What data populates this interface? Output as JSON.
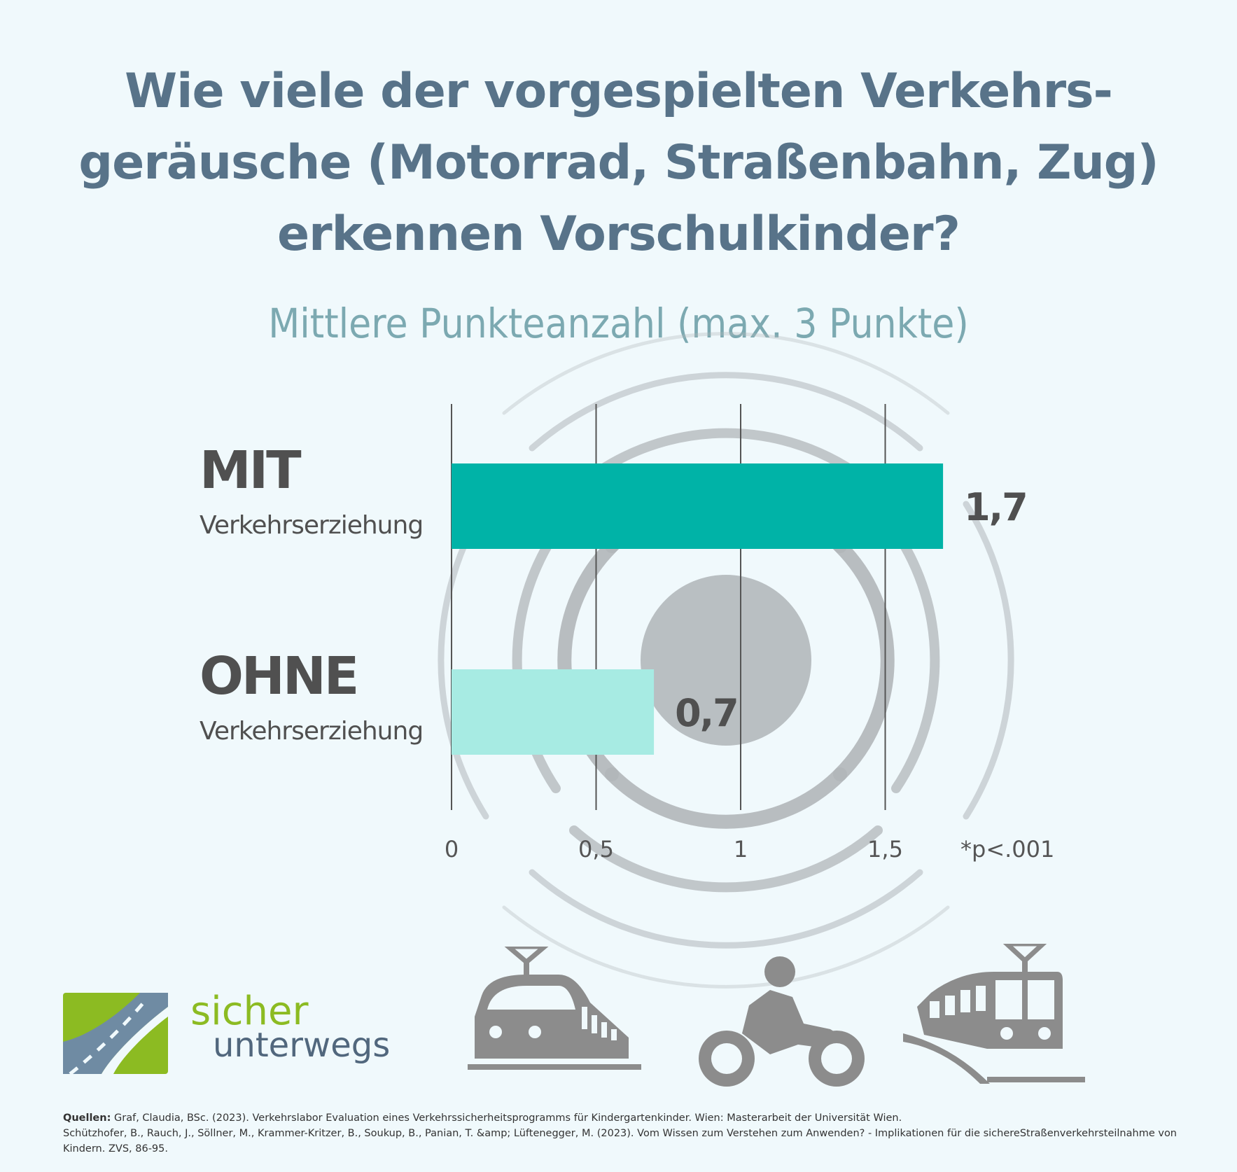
{
  "title_lines": [
    "Wie viele der vorgespielten Verkehrs-",
    "geräusche (Motorrad, Straßenbahn, Zug)",
    "erkennen Vorschulkinder?"
  ],
  "subtitle": "Mittlere Punkteanzahl (max. 3 Punkte)",
  "colors": {
    "title": "#587389",
    "subtitle": "#7ca9b1",
    "bar_mit": "#00b3a7",
    "bar_ohne": "#a7ebe3",
    "icons": "#8c8c8c",
    "logo_green": "#8cbb22",
    "logo_blue": "#51677d"
  },
  "chart_data": {
    "type": "bar",
    "orientation": "horizontal",
    "categories": [
      {
        "main": "MIT",
        "sub": "Verkehrserziehung"
      },
      {
        "main": "OHNE",
        "sub": "Verkehrserziehung"
      }
    ],
    "values": [
      1.7,
      0.7
    ],
    "value_labels": [
      "1,7",
      "0,7"
    ],
    "xlim": [
      0,
      1.5
    ],
    "xticks": [
      0,
      0.5,
      1,
      1.5
    ],
    "xtick_labels": [
      "0",
      "0,5",
      "1",
      "1,5"
    ],
    "gridlines": true,
    "significance_note": "*p<.001"
  },
  "icons": [
    "sound-waves-icon",
    "train-icon",
    "motorcycle-icon",
    "tram-icon"
  ],
  "logo": {
    "word1": "sicher",
    "word2": "unterwegs"
  },
  "sources": {
    "label": "Quellen:",
    "line1": "Graf, Claudia, BSc. (2023). Verkehrslabor Evaluation eines Verkehrssicherheitsprogramms für Kindergartenkinder. Wien: Masterarbeit der Universität Wien.",
    "line2": "Schützhofer, B., Rauch, J., Söllner, M., Krammer-Kritzer, B., Soukup, B., Panian, T. &amp; Lüftenegger, M. (2023). Vom Wissen zum Verstehen zum Anwenden? - Implikationen für die sichereStraßenverkehrsteilnahme von Kindern. ZVS, 86-95."
  }
}
